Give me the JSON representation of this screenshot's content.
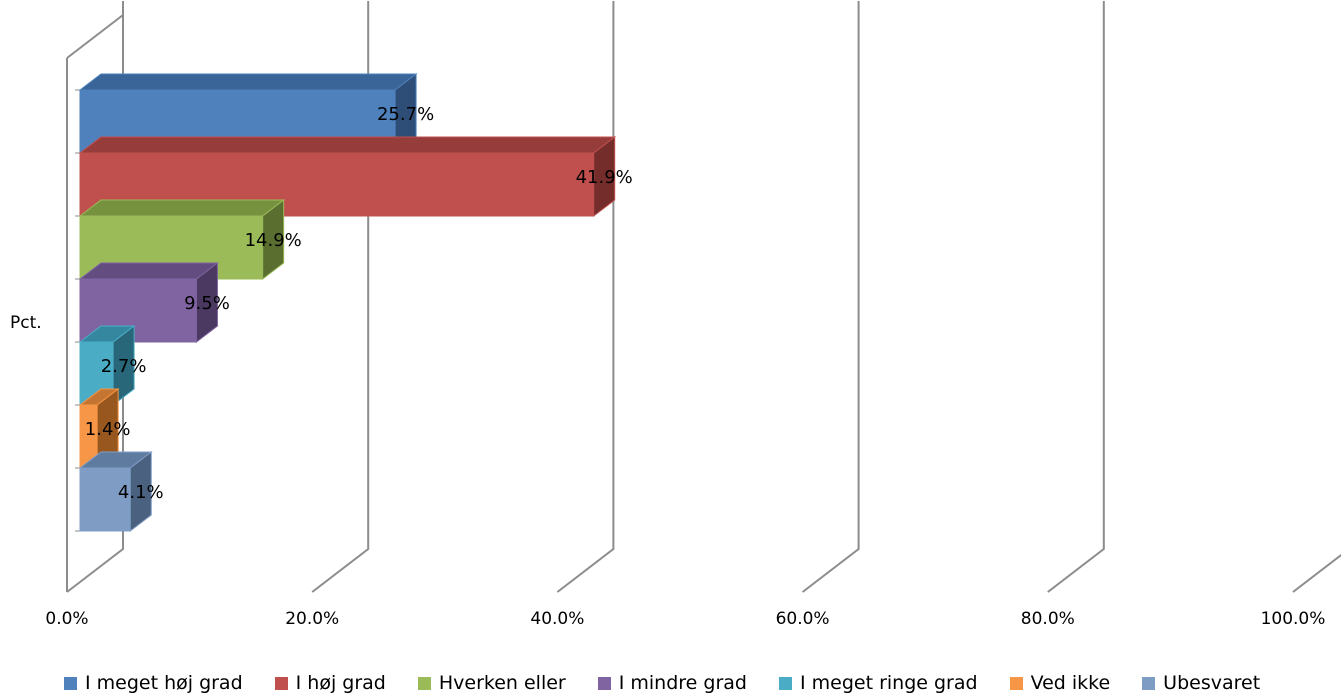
{
  "chart_data": {
    "type": "bar",
    "orientation": "horizontal",
    "three_d": true,
    "category_label": "Pct.",
    "categories": [
      "Pct."
    ],
    "series": [
      {
        "name": "I meget høj grad",
        "value": 25.7,
        "label": "25.7%",
        "color": "#4F81BD",
        "top_color": "#3A6599",
        "side_color": "#2E4E78"
      },
      {
        "name": "I høj grad",
        "value": 41.9,
        "label": "41.9%",
        "color": "#C0504D",
        "top_color": "#963C3A",
        "side_color": "#742D2B"
      },
      {
        "name": "Hverken eller",
        "value": 14.9,
        "label": "14.9%",
        "color": "#9BBB59",
        "top_color": "#77923F",
        "side_color": "#5A6F2F"
      },
      {
        "name": "I mindre grad",
        "value": 9.5,
        "label": "9.5%",
        "color": "#8064A2",
        "top_color": "#634C80",
        "side_color": "#4B3961"
      },
      {
        "name": "I meget ringe grad",
        "value": 2.7,
        "label": "2.7%",
        "color": "#4BACC6",
        "top_color": "#3587A0",
        "side_color": "#276779"
      },
      {
        "name": "Ved ikke",
        "value": 1.4,
        "label": "1.4%",
        "color": "#F79646",
        "top_color": "#C57532",
        "side_color": "#97571F"
      },
      {
        "name": "Ubesvaret",
        "value": 4.1,
        "label": "4.1%",
        "color": "#7F9DC4",
        "top_color": "#5F7CA0",
        "side_color": "#4A6180"
      }
    ],
    "x_ticks": [
      "0.0%",
      "20.0%",
      "40.0%",
      "60.0%",
      "80.0%",
      "100.0%"
    ],
    "xlim": [
      0,
      100
    ],
    "grid": true,
    "legend_position": "bottom"
  }
}
